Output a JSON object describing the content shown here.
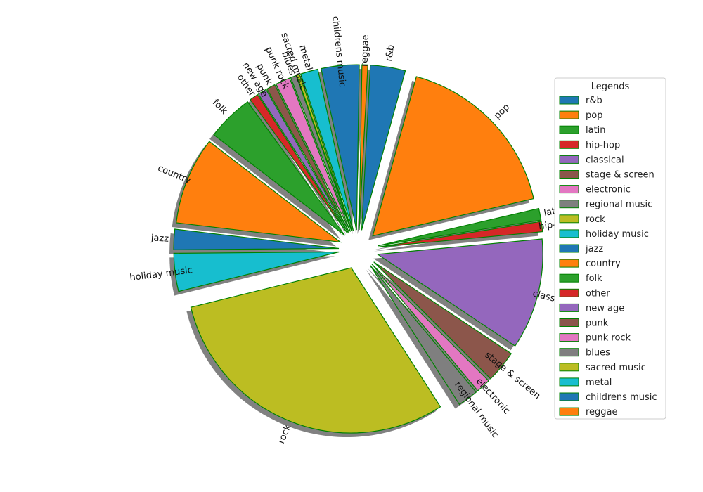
{
  "chart_data": {
    "type": "pie",
    "categories": [
      "r&b",
      "pop",
      "latin",
      "hip-hop",
      "classical",
      "stage & screen",
      "electronic",
      "regional music",
      "rock",
      "holiday music",
      "jazz",
      "country",
      "folk",
      "other",
      "new age",
      "punk",
      "punk rock",
      "blues",
      "sacred music",
      "metal",
      "childrens music",
      "reggae"
    ],
    "values": [
      12.0,
      60.0,
      4.0,
      3.5,
      38.0,
      11.0,
      5.0,
      7.0,
      106.0,
      13.0,
      7.0,
      30.0,
      16.0,
      3.0,
      3.0,
      3.0,
      5.0,
      2.0,
      1.0,
      6.0,
      13.0,
      2.0
    ],
    "colors": [
      "#1f77b4",
      "#ff7f0e",
      "#2ca02c",
      "#d62728",
      "#9467bd",
      "#8c564b",
      "#e377c2",
      "#7f7f7f",
      "#bcbd22",
      "#17becf",
      "#1f77b4",
      "#ff7f0e",
      "#2ca02c",
      "#d62728",
      "#9467bd",
      "#8c564b",
      "#e377c2",
      "#7f7f7f",
      "#bcbd22",
      "#17becf",
      "#1f77b4",
      "#ff7f0e"
    ],
    "edge_color": "#008000",
    "shadow": true,
    "exploded": true,
    "start_angle_deg": 87,
    "direction": "clockwise",
    "legend": {
      "title": "Legends",
      "placement": "right"
    }
  }
}
